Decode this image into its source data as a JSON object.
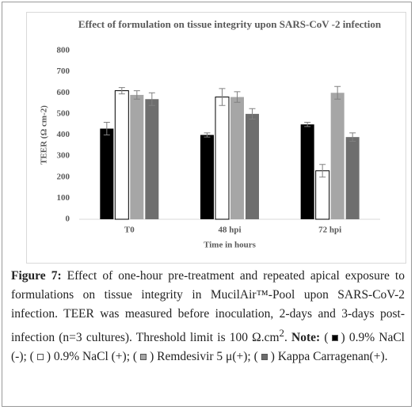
{
  "chart_data": {
    "type": "bar",
    "title": "Effect of  formulation on tissue integrity upon SARS-CoV -2 infection",
    "y_label": "TEER (Ω cm-2)",
    "x_label": "Time in hours",
    "categories": [
      "T0",
      "48 hpi",
      "72 hpi"
    ],
    "series": [
      {
        "color": "#000000",
        "values": [
          430,
          400,
          450
        ],
        "errors": [
          30,
          10,
          10
        ]
      },
      {
        "color": "#ffffff",
        "values": [
          610,
          580,
          230
        ],
        "errors": [
          15,
          40,
          30
        ]
      },
      {
        "color": "#a6a6a6",
        "values": [
          590,
          580,
          600
        ],
        "errors": [
          20,
          25,
          30
        ]
      },
      {
        "color": "#6e6e6e",
        "values": [
          570,
          500,
          390
        ],
        "errors": [
          30,
          25,
          20
        ]
      }
    ],
    "ylim": [
      0,
      800
    ],
    "yticks": [
      0,
      100,
      200,
      300,
      400,
      500,
      600,
      700,
      800
    ],
    "grid": false
  },
  "caption": {
    "label": "Figure 7:",
    "text": " Effect of one-hour pre-treatment and repeated apical exposure to formulations on tissue integrity in MucilAir™-Pool upon SARS-CoV-2 infection. TEER was measured before inoculation, 2-days and 3-days post-infection (n=3 cultures). Threshold limit is 100 Ω.cm",
    "sup": "2",
    "after_sup": ". ",
    "note_label": "Note:",
    "note_items": [
      {
        "before": " (",
        "after": ") 0.9% NaCl (-); "
      },
      {
        "before": "(",
        "after": ") 0.9% NaCl (+); "
      },
      {
        "before": "(",
        "after": ") Remdesivir 5 μ(+); "
      },
      {
        "before": "(",
        "after": ") Kappa Carragenan(+)."
      }
    ]
  }
}
